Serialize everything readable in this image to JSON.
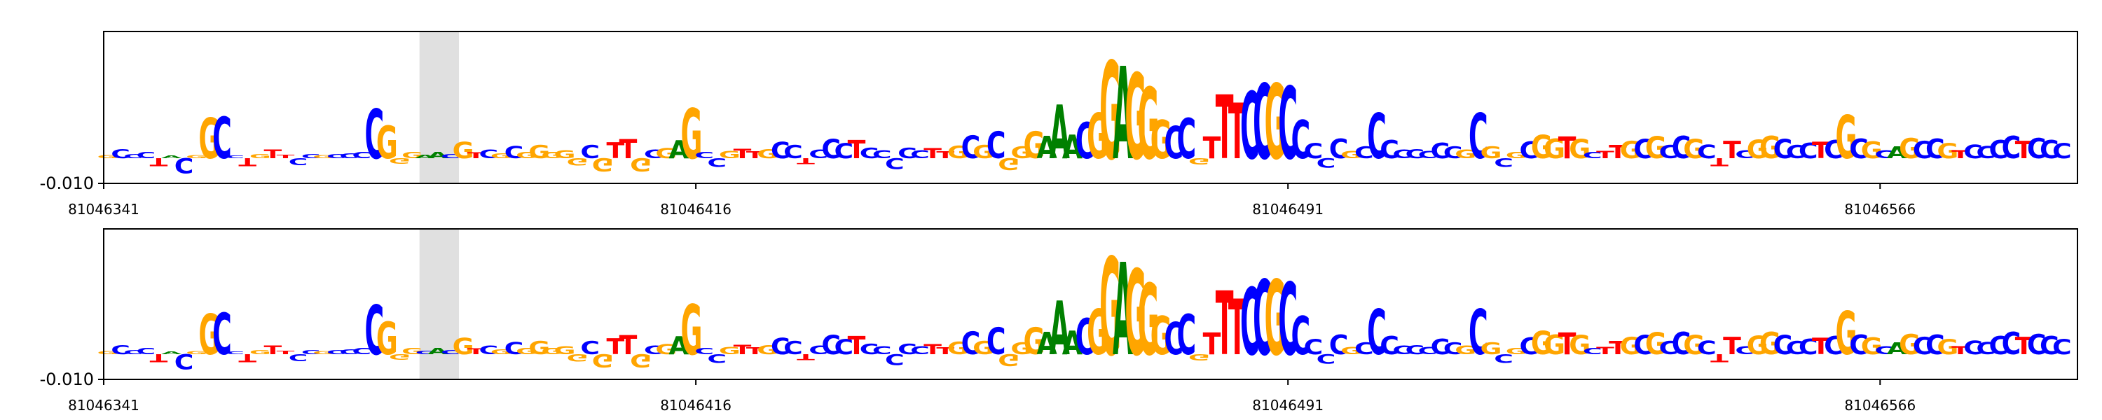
{
  "chart_data": [
    {
      "type": "sequence-logo",
      "x_start": 81046341,
      "x_end": 81046591,
      "xticks": [
        81046341,
        81046416,
        81046491,
        81046566
      ],
      "xtick_labels": [
        "81046341",
        "81046416",
        "81046491",
        "81046566"
      ],
      "ytick_labels": [
        "-0.010"
      ],
      "ylim": [
        -0.01,
        0.03
      ],
      "highlight": [
        81046381,
        81046386
      ],
      "sequence": "GCCCTACGGCCTGTTCCGCCCCGGGAACGTCGCGGGGGCGTTGCGAGCCGTTGCCTCCCTCCCCCTTGCGCGGGAAACGGAGGGCCGTTTCCGCCCCCGCCCCCCCCGCGCGCGGTGCTTGCGCCGCTTCGGCCCTCGCGCAGCCGTCCCCTCCC",
      "scores": [
        0.0006,
        0.0017,
        0.0008,
        0.0012,
        -0.0015,
        0.0005,
        -0.0028,
        0.0006,
        0.0077,
        0.0078,
        0.0005,
        -0.0015,
        0.0008,
        0.0016,
        0.0007,
        -0.0013,
        0.0008,
        0.0006,
        0.0008,
        0.0009,
        0.0012,
        0.0094,
        0.0062,
        -0.001,
        0.0012,
        0.0007,
        0.0012,
        0.0008,
        0.0031,
        0.0011,
        0.0016,
        0.0009,
        0.0023,
        0.0012,
        0.0025,
        0.0012,
        0.0015,
        -0.0014,
        0.0025,
        -0.0025,
        0.003,
        0.0036,
        -0.0025,
        0.0016,
        0.0019,
        0.0034,
        0.0095,
        0.0012,
        -0.0016,
        0.0014,
        0.0018,
        0.0013,
        0.0017,
        0.0031,
        0.0025,
        -0.0011,
        0.0016,
        0.0036,
        0.0028,
        0.0034,
        0.002,
        0.0015,
        -0.0021,
        0.002,
        0.0015,
        0.0019,
        0.0013,
        0.0024,
        0.0043,
        0.0025,
        0.0051,
        -0.0022,
        0.0022,
        0.0051,
        0.0042,
        0.0102,
        0.0045,
        0.0068,
        0.0085,
        0.0185,
        0.0175,
        0.0162,
        0.0135,
        0.0072,
        0.0061,
        0.0076,
        -0.0012,
        0.0041,
        0.0121,
        0.0105,
        0.0127,
        0.0142,
        0.0142,
        0.0137,
        0.0072,
        0.0028,
        -0.0018,
        0.0037,
        0.0014,
        0.0022,
        0.0085,
        0.0034,
        0.0016,
        0.0017,
        0.0014,
        0.0029,
        0.0022,
        0.0016,
        0.0085,
        0.0022,
        -0.0016,
        0.0012,
        0.0032,
        0.0044,
        0.0037,
        0.0041,
        0.0036,
        0.0012,
        0.0014,
        0.0025,
        0.0033,
        0.0036,
        0.0041,
        0.0025,
        0.0042,
        0.0036,
        0.0026,
        -0.0015,
        0.0033,
        0.0015,
        0.0035,
        0.0042,
        0.0036,
        0.0025,
        0.0029,
        0.0031,
        0.0034,
        0.0082,
        0.0037,
        0.0032,
        0.0015,
        0.0022,
        0.0038,
        0.0033,
        0.0037,
        0.0028,
        0.0015,
        0.0026,
        0.0023,
        0.0034,
        0.0042,
        0.0033,
        0.0038,
        0.0034,
        0.0028
      ]
    },
    {
      "type": "sequence-logo",
      "x_start": 81046341,
      "x_end": 81046591,
      "xticks": [
        81046341,
        81046416,
        81046491,
        81046566
      ],
      "xtick_labels": [
        "81046341",
        "81046416",
        "81046491",
        "81046566"
      ],
      "ytick_labels": [
        "-0.010"
      ],
      "ylim": [
        -0.01,
        0.03
      ],
      "highlight": [
        81046381,
        81046386
      ],
      "sequence": "GCCCTACGGCCTGTTCCGCCCCGGGCACGTCGCGGGGGCGTTGCGAGCCGTTGCCTCCCTCCCCCTTGCGCGGGAAACGGAGGGCCGTTTCCGCCCCCGCCCCCCCCGCGCGCGGTGCTTGCGCCGCTTCGGCCCTCGCGCAGCCGTCCCCTCCC",
      "scores": [
        0.0006,
        0.0017,
        0.0008,
        0.0012,
        -0.0015,
        0.0005,
        -0.0028,
        0.0006,
        0.0077,
        0.0078,
        0.0005,
        -0.0015,
        0.0008,
        0.0016,
        0.0007,
        -0.0013,
        0.0008,
        0.0006,
        0.0008,
        0.0009,
        0.0012,
        0.0094,
        0.0062,
        -0.001,
        0.0012,
        0.0007,
        0.0012,
        0.0008,
        0.0031,
        0.0011,
        0.0016,
        0.0009,
        0.0023,
        0.0012,
        0.0025,
        0.0012,
        0.0015,
        -0.0014,
        0.0025,
        -0.0025,
        0.003,
        0.0036,
        -0.0025,
        0.0016,
        0.0019,
        0.0034,
        0.0095,
        0.0012,
        -0.0016,
        0.0014,
        0.0018,
        0.0013,
        0.0017,
        0.0031,
        0.0025,
        -0.0011,
        0.0016,
        0.0036,
        0.0028,
        0.0034,
        0.002,
        0.0015,
        -0.0021,
        0.002,
        0.0015,
        0.0019,
        0.0013,
        0.0024,
        0.0043,
        0.0025,
        0.0051,
        -0.0022,
        0.0022,
        0.0051,
        0.0042,
        0.0102,
        0.0045,
        0.0068,
        0.0085,
        0.0185,
        0.0175,
        0.0162,
        0.0135,
        0.0072,
        0.0061,
        0.0076,
        -0.0012,
        0.0041,
        0.0121,
        0.0105,
        0.0127,
        0.0142,
        0.0142,
        0.0137,
        0.0072,
        0.0028,
        -0.0018,
        0.0037,
        0.0014,
        0.0022,
        0.0085,
        0.0034,
        0.0016,
        0.0017,
        0.0014,
        0.0029,
        0.0022,
        0.0016,
        0.0085,
        0.0022,
        -0.0016,
        0.0012,
        0.0032,
        0.0044,
        0.0037,
        0.0041,
        0.0036,
        0.0012,
        0.0014,
        0.0025,
        0.0033,
        0.0036,
        0.0041,
        0.0025,
        0.0042,
        0.0036,
        0.0026,
        -0.0015,
        0.0033,
        0.0015,
        0.0035,
        0.0042,
        0.0036,
        0.0025,
        0.0029,
        0.0031,
        0.0034,
        0.0082,
        0.0037,
        0.0032,
        0.0015,
        0.0022,
        0.0038,
        0.0033,
        0.0037,
        0.0028,
        0.0015,
        0.0026,
        0.0023,
        0.0034,
        0.0042,
        0.0033,
        0.0038,
        0.0034,
        0.0028
      ]
    }
  ],
  "colors": {
    "A": "#008000",
    "C": "#0000ff",
    "G": "#ffa500",
    "T": "#ff0000",
    "highlight": "#e0e0e0",
    "axis": "#000000"
  }
}
